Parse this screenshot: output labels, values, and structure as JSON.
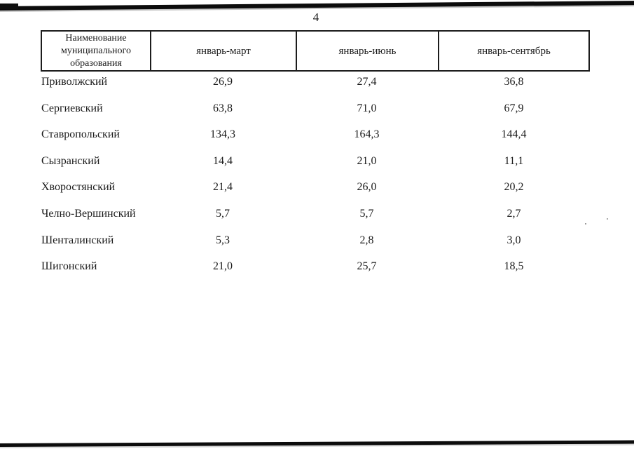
{
  "page_number": "4",
  "colors": {
    "ink": "#1b1b1b",
    "paper": "#ffffff",
    "border": "#1c1c1c"
  },
  "table": {
    "header": {
      "name_column": "Наименование муниципального образования",
      "period1": "январь-март",
      "period2": "январь-июнь",
      "period3": "январь-сентябрь"
    },
    "rows": [
      {
        "name": "Приволжский",
        "jan_mar": "26,9",
        "jan_jun": "27,4",
        "jan_sep": "36,8"
      },
      {
        "name": "Сергиевский",
        "jan_mar": "63,8",
        "jan_jun": "71,0",
        "jan_sep": "67,9"
      },
      {
        "name": "Ставропольский",
        "jan_mar": "134,3",
        "jan_jun": "164,3",
        "jan_sep": "144,4"
      },
      {
        "name": "Сызранский",
        "jan_mar": "14,4",
        "jan_jun": "21,0",
        "jan_sep": "11,1"
      },
      {
        "name": "Хворостянский",
        "jan_mar": "21,4",
        "jan_jun": "26,0",
        "jan_sep": "20,2"
      },
      {
        "name": "Челно-Вершинский",
        "jan_mar": "5,7",
        "jan_jun": "5,7",
        "jan_sep": "2,7"
      },
      {
        "name": "Шенталинский",
        "jan_mar": "5,3",
        "jan_jun": "2,8",
        "jan_sep": "3,0"
      },
      {
        "name": "Шигонский",
        "jan_mar": "21,0",
        "jan_jun": "25,7",
        "jan_sep": "18,5"
      }
    ]
  }
}
